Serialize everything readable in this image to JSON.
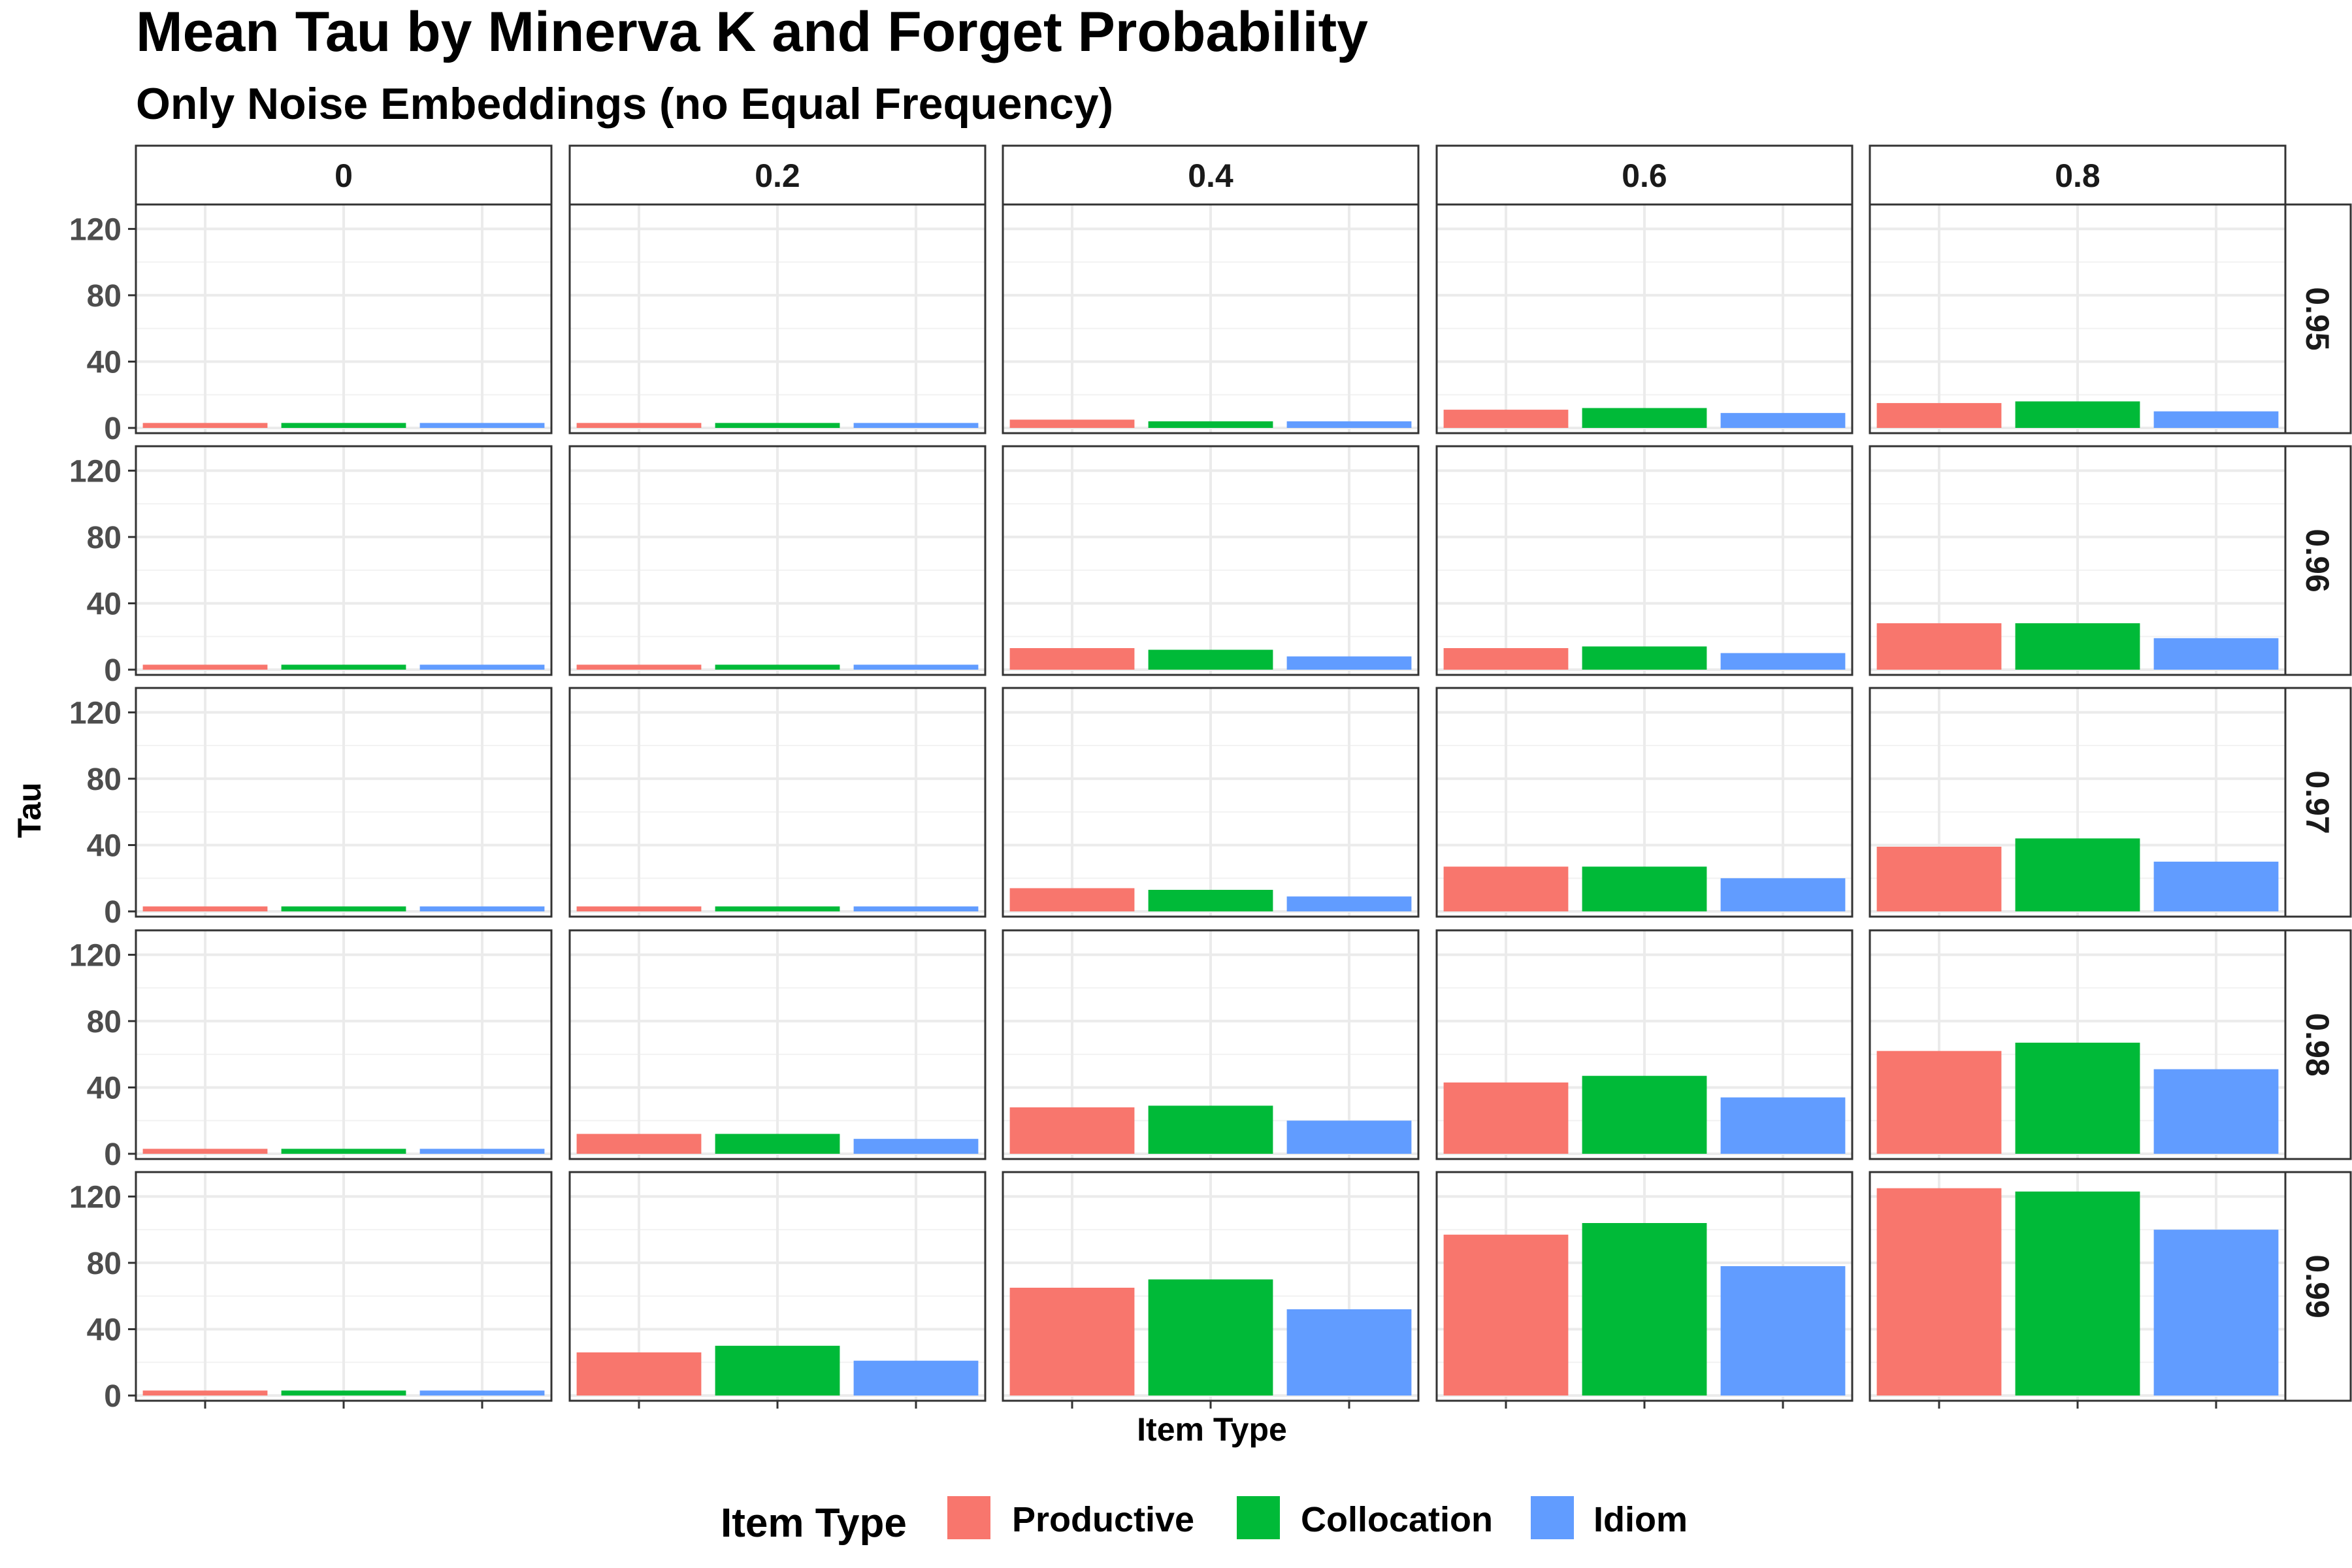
{
  "chart_data": {
    "type": "bar",
    "title": "Mean Tau by Minerva K and Forget Probability",
    "subtitle": "Only Noise Embeddings (no Equal Frequency)",
    "xlabel": "Item Type",
    "ylabel": "Tau",
    "ylim": [
      0,
      130
    ],
    "y_ticks": [
      0,
      40,
      80,
      120
    ],
    "grid": true,
    "facet_columns": [
      "0",
      "0.2",
      "0.4",
      "0.6",
      "0.8"
    ],
    "facet_rows": [
      "0.95",
      "0.96",
      "0.97",
      "0.98",
      "0.99"
    ],
    "categories": [
      "Productive",
      "Collocation",
      "Idiom"
    ],
    "colors": {
      "Productive": "#F8766D",
      "Collocation": "#00BA38",
      "Idiom": "#619CFF"
    },
    "legend": {
      "title": "Item Type",
      "position": "bottom",
      "items": [
        "Productive",
        "Collocation",
        "Idiom"
      ]
    },
    "panels": [
      {
        "row": "0.95",
        "col": "0",
        "values": [
          3,
          3,
          3
        ]
      },
      {
        "row": "0.95",
        "col": "0.2",
        "values": [
          3,
          3,
          3
        ]
      },
      {
        "row": "0.95",
        "col": "0.4",
        "values": [
          5,
          4,
          4
        ]
      },
      {
        "row": "0.95",
        "col": "0.6",
        "values": [
          11,
          12,
          9
        ]
      },
      {
        "row": "0.95",
        "col": "0.8",
        "values": [
          15,
          16,
          10
        ]
      },
      {
        "row": "0.96",
        "col": "0",
        "values": [
          3,
          3,
          3
        ]
      },
      {
        "row": "0.96",
        "col": "0.2",
        "values": [
          3,
          3,
          3
        ]
      },
      {
        "row": "0.96",
        "col": "0.4",
        "values": [
          13,
          12,
          8
        ]
      },
      {
        "row": "0.96",
        "col": "0.6",
        "values": [
          13,
          14,
          10
        ]
      },
      {
        "row": "0.96",
        "col": "0.8",
        "values": [
          28,
          28,
          19
        ]
      },
      {
        "row": "0.97",
        "col": "0",
        "values": [
          3,
          3,
          3
        ]
      },
      {
        "row": "0.97",
        "col": "0.2",
        "values": [
          3,
          3,
          3
        ]
      },
      {
        "row": "0.97",
        "col": "0.4",
        "values": [
          14,
          13,
          9
        ]
      },
      {
        "row": "0.97",
        "col": "0.6",
        "values": [
          27,
          27,
          20
        ]
      },
      {
        "row": "0.97",
        "col": "0.8",
        "values": [
          39,
          44,
          30
        ]
      },
      {
        "row": "0.98",
        "col": "0",
        "values": [
          3,
          3,
          3
        ]
      },
      {
        "row": "0.98",
        "col": "0.2",
        "values": [
          12,
          12,
          9
        ]
      },
      {
        "row": "0.98",
        "col": "0.4",
        "values": [
          28,
          29,
          20
        ]
      },
      {
        "row": "0.98",
        "col": "0.6",
        "values": [
          43,
          47,
          34
        ]
      },
      {
        "row": "0.98",
        "col": "0.8",
        "values": [
          62,
          67,
          51
        ]
      },
      {
        "row": "0.99",
        "col": "0",
        "values": [
          3,
          3,
          3
        ]
      },
      {
        "row": "0.99",
        "col": "0.2",
        "values": [
          26,
          30,
          21
        ]
      },
      {
        "row": "0.99",
        "col": "0.4",
        "values": [
          65,
          70,
          52
        ]
      },
      {
        "row": "0.99",
        "col": "0.6",
        "values": [
          97,
          104,
          78
        ]
      },
      {
        "row": "0.99",
        "col": "0.8",
        "values": [
          125,
          123,
          100
        ]
      }
    ]
  }
}
